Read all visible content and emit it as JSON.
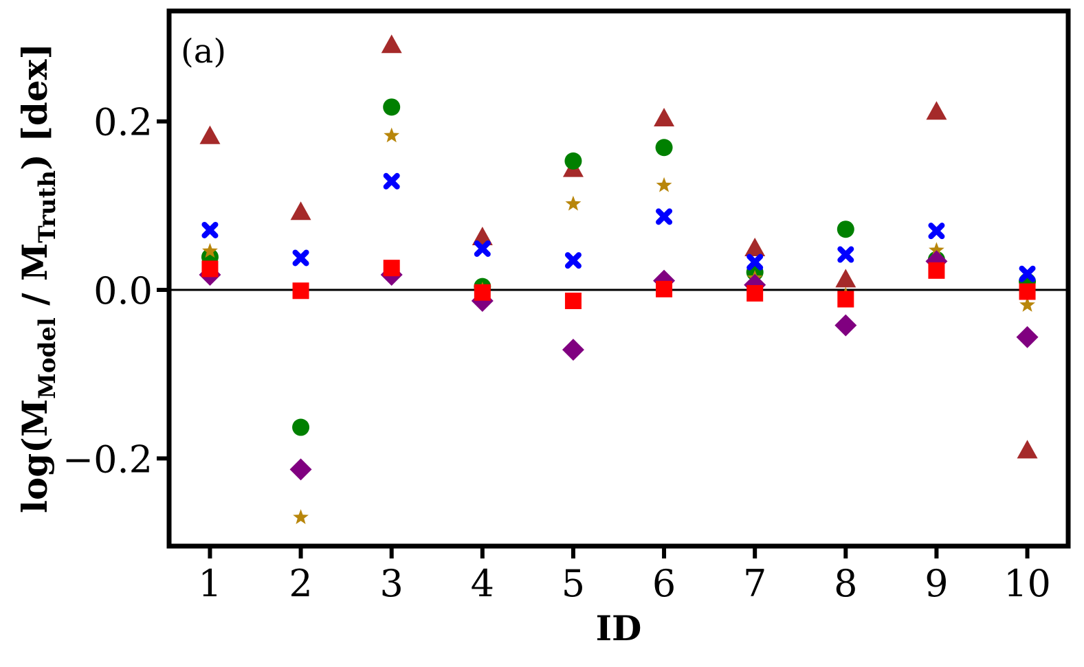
{
  "chart_data": {
    "type": "scatter",
    "panel_label": "(a)",
    "xlabel": "ID",
    "ylabel": {
      "prefix": "log(M",
      "sub1": "Model",
      "middle": " / M",
      "sub2": "Truth",
      "suffix": ") [dex]"
    },
    "xlim": [
      0.55,
      10.45
    ],
    "ylim": [
      -0.304,
      0.331
    ],
    "x_ticks": [
      1,
      2,
      3,
      4,
      5,
      6,
      7,
      8,
      9,
      10
    ],
    "y_ticks": [
      -0.2,
      0.0,
      0.2
    ],
    "y_tick_labels": [
      "−0.2",
      "0.0",
      "0.2"
    ],
    "reference_line_y": 0.0,
    "grid": false,
    "legend": "none",
    "series": [
      {
        "marker": "triangle",
        "color": "#a52a2a",
        "x": [
          1,
          2,
          3,
          4,
          5,
          6,
          7,
          8,
          9,
          10
        ],
        "y": [
          0.182,
          0.092,
          0.29,
          0.062,
          0.143,
          0.203,
          0.049,
          0.012,
          0.211,
          -0.191
        ]
      },
      {
        "marker": "circle",
        "color": "#008000",
        "x": [
          1,
          2,
          3,
          4,
          5,
          6,
          7,
          8,
          9,
          10
        ],
        "y": [
          0.039,
          -0.163,
          0.217,
          0.004,
          0.153,
          0.169,
          0.021,
          0.072,
          0.036,
          0.01
        ]
      },
      {
        "marker": "star",
        "color": "#b8860b",
        "x": [
          1,
          2,
          3,
          4,
          5,
          6,
          7,
          8,
          9,
          10
        ],
        "y": [
          0.046,
          -0.27,
          0.183,
          0.0,
          0.102,
          0.124,
          0.014,
          -0.006,
          0.047,
          -0.018
        ]
      },
      {
        "marker": "x",
        "color": "#0000ff",
        "x": [
          1,
          2,
          3,
          4,
          5,
          6,
          7,
          8,
          9,
          10
        ],
        "y": [
          0.071,
          0.038,
          0.129,
          0.049,
          0.035,
          0.087,
          0.033,
          0.042,
          0.07,
          0.019
        ]
      },
      {
        "marker": "diamond",
        "color": "#800080",
        "x": [
          1,
          2,
          3,
          4,
          5,
          6,
          7,
          8,
          9,
          10
        ],
        "y": [
          0.018,
          -0.213,
          0.018,
          -0.013,
          -0.071,
          0.011,
          0.006,
          -0.042,
          0.034,
          -0.056
        ]
      },
      {
        "marker": "square",
        "color": "#ff0000",
        "x": [
          1,
          2,
          3,
          4,
          5,
          6,
          7,
          8,
          9,
          10
        ],
        "y": [
          0.025,
          -0.001,
          0.026,
          -0.003,
          -0.013,
          0.001,
          -0.004,
          -0.011,
          0.023,
          -0.002
        ]
      }
    ]
  }
}
